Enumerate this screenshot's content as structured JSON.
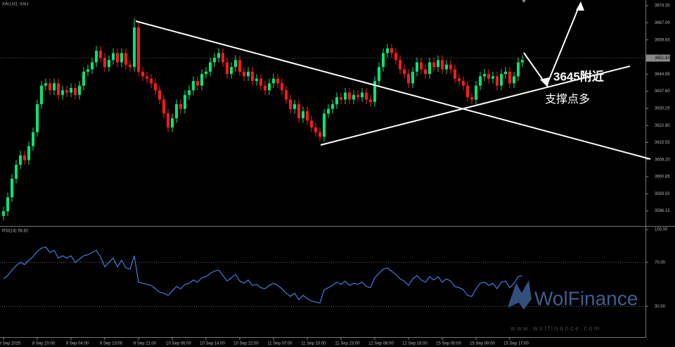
{
  "chart_data": {
    "type": "candlestick",
    "title": "XAU,H1: XAU",
    "bull_color": "#00e676",
    "bear_color": "#ff1a1a",
    "categories": [
      "8 Sep 2025",
      null,
      null,
      null,
      null,
      null,
      null,
      null,
      "8 Sep 20:00",
      null,
      null,
      null,
      null,
      null,
      null,
      null,
      "9 Sep 04:00",
      null,
      null,
      null,
      null,
      null,
      null,
      null,
      "9 Sep 13:00",
      null,
      null,
      null,
      null,
      null,
      null,
      null,
      "9 Sep 21:00",
      null,
      null,
      null,
      null,
      null,
      null,
      null,
      "10 Sep 06:00",
      null,
      null,
      null,
      null,
      null,
      null,
      null,
      "10 Sep 14:00",
      null,
      null,
      null,
      null,
      null,
      null,
      null,
      "10 Sep 22:00",
      null,
      null,
      null,
      null,
      null,
      null,
      null,
      "11 Sep 07:00",
      null,
      null,
      null,
      null,
      null,
      null,
      null,
      "11 Sep 15:00",
      null,
      null,
      null,
      null,
      null,
      null,
      null,
      "11 Sep 23:00",
      null,
      null,
      null,
      null,
      null,
      null,
      null,
      "12 Sep 08:00",
      null,
      null,
      null,
      null,
      null,
      null,
      null,
      "12 Sep 16:00",
      null,
      null,
      null,
      null,
      null,
      null,
      null,
      "15 Sep 00:00",
      null,
      null,
      null,
      null,
      null,
      null,
      null,
      "15 Sep 09:00",
      null,
      null,
      null,
      null,
      null,
      null,
      null,
      "15 Sep 17:00",
      null,
      null,
      null
    ],
    "open": [
      3584,
      3586,
      3592,
      3600,
      3606,
      3610,
      3608,
      3614,
      3620,
      3632,
      3640,
      3641,
      3638,
      3641,
      3636,
      3638,
      3637,
      3639,
      3636,
      3640,
      3646,
      3647,
      3650,
      3655,
      3652,
      3648,
      3651,
      3654,
      3650,
      3654,
      3649,
      3648,
      3665,
      3646,
      3644,
      3643,
      3641,
      3638,
      3634,
      3628,
      3622,
      3626,
      3632,
      3630,
      3636,
      3638,
      3642,
      3640,
      3645,
      3646,
      3650,
      3652,
      3654,
      3650,
      3645,
      3648,
      3651,
      3646,
      3644,
      3646,
      3642,
      3643,
      3640,
      3638,
      3641,
      3643,
      3641,
      3638,
      3634,
      3630,
      3632,
      3626,
      3629,
      3625,
      3622,
      3620,
      3618,
      3628,
      3630,
      3632,
      3635,
      3634,
      3637,
      3634,
      3636,
      3635,
      3637,
      3634,
      3633,
      3642,
      3648,
      3654,
      3656,
      3654,
      3651,
      3647,
      3645,
      3641,
      3646,
      3650,
      3647,
      3645,
      3650,
      3648,
      3651,
      3647,
      3649,
      3647,
      3643,
      3642,
      3640,
      3635,
      3634,
      3640,
      3644,
      3645,
      3643,
      3644,
      3640,
      3645,
      3646,
      3641,
      3644,
      3650
    ],
    "high": [
      3588,
      3594,
      3602,
      3608,
      3612,
      3612,
      3616,
      3622,
      3634,
      3642,
      3643,
      3643,
      3643,
      3643,
      3640,
      3640,
      3641,
      3641,
      3642,
      3648,
      3649,
      3652,
      3657,
      3657,
      3654,
      3653,
      3656,
      3656,
      3656,
      3656,
      3651,
      3669,
      3667,
      3648,
      3646,
      3645,
      3643,
      3640,
      3636,
      3630,
      3628,
      3634,
      3634,
      3638,
      3640,
      3644,
      3644,
      3647,
      3648,
      3652,
      3654,
      3656,
      3656,
      3652,
      3650,
      3653,
      3653,
      3648,
      3648,
      3648,
      3645,
      3645,
      3642,
      3643,
      3645,
      3645,
      3643,
      3640,
      3636,
      3634,
      3634,
      3631,
      3631,
      3627,
      3624,
      3622,
      3630,
      3632,
      3634,
      3637,
      3637,
      3639,
      3639,
      3638,
      3638,
      3639,
      3639,
      3636,
      3644,
      3650,
      3656,
      3658,
      3658,
      3656,
      3653,
      3649,
      3647,
      3648,
      3652,
      3652,
      3649,
      3652,
      3652,
      3653,
      3653,
      3651,
      3651,
      3649,
      3645,
      3644,
      3642,
      3637,
      3642,
      3646,
      3647,
      3647,
      3646,
      3646,
      3647,
      3648,
      3648,
      3646,
      3652,
      3653
    ],
    "low": [
      3582,
      3584,
      3590,
      3598,
      3604,
      3606,
      3606,
      3612,
      3618,
      3630,
      3638,
      3636,
      3636,
      3634,
      3634,
      3635,
      3635,
      3634,
      3634,
      3638,
      3644,
      3645,
      3648,
      3650,
      3646,
      3646,
      3649,
      3648,
      3648,
      3647,
      3646,
      3646,
      3644,
      3642,
      3641,
      3639,
      3636,
      3632,
      3626,
      3620,
      3620,
      3624,
      3628,
      3628,
      3634,
      3636,
      3638,
      3638,
      3643,
      3644,
      3648,
      3650,
      3648,
      3643,
      3643,
      3646,
      3644,
      3642,
      3642,
      3640,
      3640,
      3638,
      3636,
      3636,
      3639,
      3639,
      3636,
      3632,
      3628,
      3628,
      3624,
      3624,
      3623,
      3620,
      3618,
      3616,
      3616,
      3626,
      3628,
      3630,
      3632,
      3632,
      3632,
      3632,
      3633,
      3633,
      3632,
      3631,
      3631,
      3640,
      3646,
      3652,
      3652,
      3649,
      3645,
      3643,
      3639,
      3639,
      3644,
      3645,
      3643,
      3643,
      3646,
      3646,
      3645,
      3645,
      3645,
      3641,
      3640,
      3638,
      3633,
      3632,
      3632,
      3638,
      3642,
      3641,
      3641,
      3638,
      3638,
      3643,
      3639,
      3639,
      3642,
      3648
    ],
    "close": [
      3586,
      3592,
      3600,
      3606,
      3610,
      3608,
      3614,
      3620,
      3632,
      3640,
      3641,
      3638,
      3641,
      3636,
      3638,
      3637,
      3639,
      3636,
      3640,
      3646,
      3647,
      3650,
      3655,
      3652,
      3648,
      3651,
      3654,
      3650,
      3654,
      3649,
      3648,
      3665,
      3646,
      3644,
      3643,
      3641,
      3638,
      3634,
      3628,
      3622,
      3626,
      3632,
      3630,
      3636,
      3638,
      3642,
      3640,
      3645,
      3646,
      3650,
      3652,
      3654,
      3650,
      3645,
      3648,
      3651,
      3646,
      3644,
      3646,
      3642,
      3643,
      3640,
      3638,
      3641,
      3643,
      3641,
      3638,
      3634,
      3630,
      3632,
      3626,
      3629,
      3625,
      3622,
      3620,
      3618,
      3628,
      3630,
      3632,
      3635,
      3634,
      3637,
      3634,
      3636,
      3635,
      3637,
      3634,
      3633,
      3642,
      3648,
      3654,
      3656,
      3654,
      3651,
      3647,
      3645,
      3641,
      3646,
      3650,
      3647,
      3645,
      3650,
      3648,
      3651,
      3647,
      3649,
      3647,
      3643,
      3642,
      3640,
      3635,
      3634,
      3640,
      3644,
      3645,
      3643,
      3644,
      3640,
      3645,
      3646,
      3641,
      3644,
      3650,
      3651
    ],
    "ylim": [
      3580,
      3676.8
    ],
    "yticks": [
      3674.35,
      {
        "value": 3667.0,
        "label": "3667.00"
      },
      3659.65,
      3644.95,
      {
        "value": 3637.6,
        "label": "3637.60"
      },
      3630.25,
      {
        "value": 3622.9,
        "label": "3622.90"
      },
      3615.55,
      {
        "value": 3608.2,
        "label": "3608.20"
      },
      3600.85,
      {
        "value": 3593.5,
        "label": "3593.50"
      },
      3586.15
    ],
    "last_price": 3651.83,
    "annotations": [
      "3645附近",
      "支撑点多"
    ],
    "rsi": {
      "title": "RSI(14) 58.82",
      "color": "#3d7fe0",
      "values": [
        55,
        58,
        63,
        67,
        70,
        68,
        72,
        75,
        80,
        83,
        84,
        79,
        81,
        74,
        76,
        74,
        76,
        70,
        73,
        76,
        77,
        79,
        81,
        75,
        66,
        70,
        74,
        66,
        72,
        65,
        64,
        76,
        52,
        51,
        50,
        49,
        46,
        43,
        42,
        40,
        44,
        48,
        46,
        50,
        51,
        54,
        52,
        56,
        57,
        60,
        62,
        63,
        58,
        53,
        56,
        59,
        53,
        51,
        54,
        49,
        50,
        47,
        46,
        49,
        51,
        49,
        46,
        42,
        39,
        42,
        36,
        40,
        37,
        35,
        34,
        33,
        45,
        47,
        49,
        52,
        50,
        53,
        49,
        51,
        50,
        52,
        48,
        47,
        56,
        60,
        64,
        65,
        62,
        59,
        55,
        53,
        49,
        55,
        58,
        54,
        52,
        57,
        54,
        57,
        52,
        55,
        53,
        48,
        47,
        45,
        40,
        39,
        46,
        51,
        52,
        49,
        51,
        46,
        52,
        53,
        47,
        51,
        57,
        58
      ],
      "ylim": [
        0,
        100
      ],
      "yticks": [
        {
          "value": 100,
          "label": "100.00"
        },
        {
          "value": 70,
          "label": "70.00"
        },
        {
          "value": 30,
          "label": "30.00"
        }
      ]
    },
    "watermark": {
      "brand": "WolFinance",
      "url": "w w w . w o l f i n a n c e . c o m"
    }
  }
}
